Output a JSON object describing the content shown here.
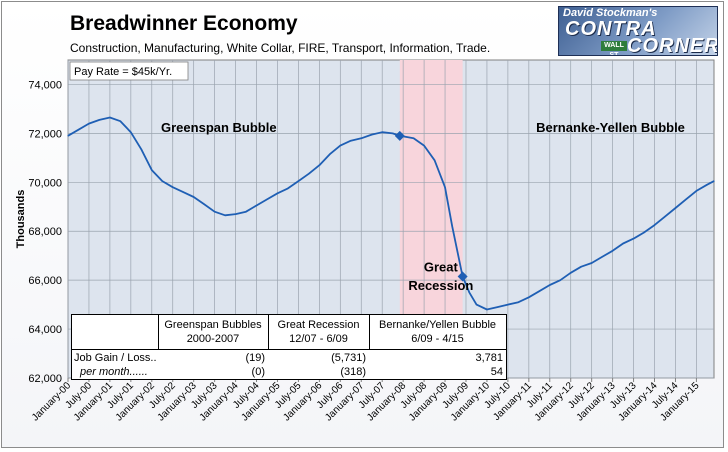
{
  "header": {
    "title": "Breadwinner Economy",
    "subtitle": "Construction, Manufacturing, White Collar, FIRE, Transport, Information, Trade."
  },
  "logo": {
    "line1": "David Stockman's",
    "line2": "CONTRA",
    "line3": "CORNER",
    "sign": "WALL ST"
  },
  "chart_data": {
    "type": "line",
    "title": "Breadwinner Economy",
    "subtitle": "Construction, Manufacturing, White Collar, FIRE, Transport, Information, Trade.",
    "ylabel": "Thousands",
    "xlabel": "",
    "ylim": [
      62000,
      75000
    ],
    "yticks": [
      62000,
      64000,
      66000,
      68000,
      70000,
      72000,
      74000
    ],
    "ytick_labels": [
      "62,000",
      "64,000",
      "66,000",
      "68,000",
      "70,000",
      "72,000",
      "74,000"
    ],
    "grid": true,
    "xlim": [
      2000.0,
      2015.42
    ],
    "xtick_labels": [
      "January-00",
      "July-00",
      "January-01",
      "July-01",
      "January-02",
      "July-02",
      "January-03",
      "July-03",
      "January-04",
      "July-04",
      "January-05",
      "July-05",
      "January-06",
      "July-06",
      "January-07",
      "July-07",
      "January-08",
      "July-08",
      "January-09",
      "July-09",
      "January-10",
      "July-10",
      "January-11",
      "July-11",
      "January-12",
      "July-12",
      "January-13",
      "July-13",
      "January-14",
      "July-14",
      "January-15"
    ],
    "pay_rate_note": "Pay Rate = $45k/Yr.",
    "recession_shading": {
      "start": 2007.92,
      "end": 2009.42
    },
    "series": [
      {
        "name": "",
        "color": "#1f5fb4",
        "points": [
          [
            2000.0,
            71900
          ],
          [
            2000.25,
            72150
          ],
          [
            2000.5,
            72400
          ],
          [
            2000.75,
            72550
          ],
          [
            2001.0,
            72650
          ],
          [
            2001.25,
            72500
          ],
          [
            2001.5,
            72050
          ],
          [
            2001.75,
            71350
          ],
          [
            2002.0,
            70500
          ],
          [
            2002.25,
            70050
          ],
          [
            2002.5,
            69800
          ],
          [
            2002.75,
            69600
          ],
          [
            2003.0,
            69400
          ],
          [
            2003.25,
            69100
          ],
          [
            2003.5,
            68800
          ],
          [
            2003.75,
            68650
          ],
          [
            2004.0,
            68700
          ],
          [
            2004.25,
            68800
          ],
          [
            2004.5,
            69050
          ],
          [
            2004.75,
            69300
          ],
          [
            2005.0,
            69550
          ],
          [
            2005.25,
            69750
          ],
          [
            2005.5,
            70050
          ],
          [
            2005.75,
            70350
          ],
          [
            2006.0,
            70700
          ],
          [
            2006.25,
            71150
          ],
          [
            2006.5,
            71500
          ],
          [
            2006.75,
            71700
          ],
          [
            2007.0,
            71800
          ],
          [
            2007.25,
            71950
          ],
          [
            2007.5,
            72050
          ],
          [
            2007.75,
            72000
          ],
          [
            2007.92,
            71900
          ],
          [
            2008.25,
            71800
          ],
          [
            2008.5,
            71500
          ],
          [
            2008.75,
            70900
          ],
          [
            2009.0,
            69800
          ],
          [
            2009.17,
            68200
          ],
          [
            2009.42,
            66150
          ],
          [
            2009.58,
            65500
          ],
          [
            2009.75,
            65000
          ],
          [
            2010.0,
            64800
          ],
          [
            2010.25,
            64900
          ],
          [
            2010.5,
            65000
          ],
          [
            2010.75,
            65100
          ],
          [
            2011.0,
            65300
          ],
          [
            2011.25,
            65550
          ],
          [
            2011.5,
            65800
          ],
          [
            2011.75,
            66000
          ],
          [
            2012.0,
            66300
          ],
          [
            2012.25,
            66550
          ],
          [
            2012.5,
            66700
          ],
          [
            2012.75,
            66950
          ],
          [
            2013.0,
            67200
          ],
          [
            2013.25,
            67500
          ],
          [
            2013.5,
            67700
          ],
          [
            2013.75,
            67950
          ],
          [
            2014.0,
            68250
          ],
          [
            2014.25,
            68600
          ],
          [
            2014.5,
            68950
          ],
          [
            2014.75,
            69300
          ],
          [
            2015.0,
            69650
          ],
          [
            2015.25,
            69900
          ],
          [
            2015.42,
            70050
          ]
        ],
        "markers": [
          [
            2007.92,
            71900
          ],
          [
            2009.42,
            66150
          ]
        ]
      }
    ],
    "annotations": [
      {
        "text": "Greenspan Bubble",
        "x": 2003.6,
        "y": 72050
      },
      {
        "text": "Bernanke-Yellen Bubble",
        "x": 2012.95,
        "y": 72050
      },
      {
        "text": "Great",
        "x": 2008.9,
        "y": 66350
      },
      {
        "text": "Recession",
        "x": 2008.9,
        "y": 65600
      }
    ]
  },
  "table": {
    "headers": [
      {
        "line1": "",
        "line2": ""
      },
      {
        "line1": "Greenspan Bubbles",
        "line2": "2000-2007"
      },
      {
        "line1": "Great Recession",
        "line2": "12/07 - 6/09"
      },
      {
        "line1": "Bernanke/Yellen Bubble",
        "line2": "6/09 - 4/15"
      }
    ],
    "rows": [
      {
        "label": "Job Gain / Loss..",
        "values": [
          "(19)",
          "(5,731)",
          "3,781"
        ]
      },
      {
        "label": "per month......",
        "values": [
          "(0)",
          "(318)",
          "54"
        ]
      }
    ]
  }
}
